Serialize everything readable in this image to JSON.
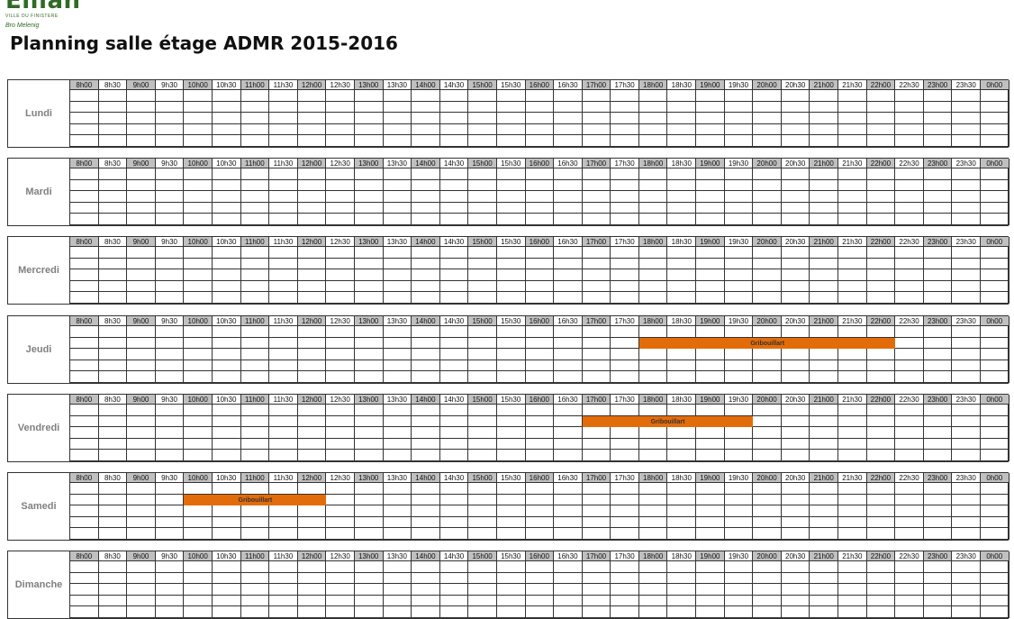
{
  "logo": {
    "text": "Ellian",
    "subtitle": "VILLE DU FINISTERE",
    "tagline": "Bro Melenig"
  },
  "page_title": "Planning salle étage ADMR 2015-2016",
  "colors": {
    "event": "#e36c0a",
    "header_gray": "#c0c0c0",
    "label_gray": "#808080"
  },
  "time_slots": [
    "8h00",
    "8h30",
    "9h00",
    "9h30",
    "10h00",
    "10h30",
    "11h00",
    "11h30",
    "12h00",
    "12h30",
    "13h00",
    "13h30",
    "14h00",
    "14h30",
    "15h00",
    "15h30",
    "16h00",
    "16h30",
    "17h00",
    "17h30",
    "18h00",
    "18h30",
    "19h00",
    "19h30",
    "20h00",
    "20h30",
    "21h00",
    "21h30",
    "22h00",
    "22h30",
    "23h00",
    "23h30",
    "0h00"
  ],
  "days": [
    {
      "name": "Lundi",
      "events": []
    },
    {
      "name": "Mardi",
      "events": []
    },
    {
      "name": "Mercredi",
      "events": []
    },
    {
      "name": "Jeudi",
      "events": [
        {
          "label": "Gribouillart",
          "start": "18h00",
          "end": "22h30",
          "row": 1
        }
      ]
    },
    {
      "name": "Vendredi",
      "events": [
        {
          "label": "Gribouillart",
          "start": "17h00",
          "end": "20h00",
          "row": 1
        }
      ]
    },
    {
      "name": "Samedi",
      "events": [
        {
          "label": "Gribouillart",
          "start": "10h00",
          "end": "12h30",
          "row": 1
        }
      ]
    },
    {
      "name": "Dimanche",
      "events": []
    }
  ]
}
